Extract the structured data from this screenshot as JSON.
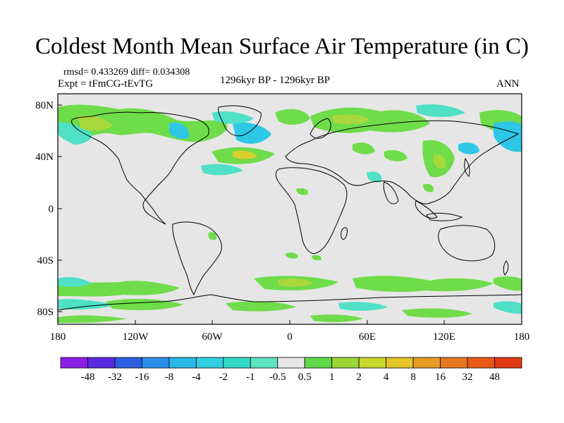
{
  "title": "Coldest Month Mean Surface Air Temperature (in C)",
  "stats": "rmsd= 0.433269  diff= 0.034308",
  "experiment": "Expt = tFmCG-tEvTG",
  "period": "1296kyr BP - 1296kyr BP",
  "season": "ANN",
  "lat_ticks": [
    "80N",
    "40N",
    "0",
    "40S",
    "80S"
  ],
  "lon_ticks": [
    "180",
    "120W",
    "60W",
    "0",
    "60E",
    "120E",
    "180"
  ],
  "legend": {
    "colors": [
      "#8c1fe6",
      "#5a2ae0",
      "#2f5fe0",
      "#2a8fe8",
      "#2bb6e8",
      "#33cfe0",
      "#35d9c8",
      "#5ee3c0",
      "#e6e6e6",
      "#5fd84a",
      "#9ad63a",
      "#c9d62e",
      "#e4c42a",
      "#e59c25",
      "#e8781f",
      "#e85a1a",
      "#e03a12"
    ],
    "labels": [
      "-48",
      "-32",
      "-16",
      "-8",
      "-4",
      "-2",
      "-1",
      "-0.5",
      "0.5",
      "1",
      "2",
      "4",
      "8",
      "16",
      "32",
      "48"
    ]
  },
  "palette": {
    "background": "#e6e6e6",
    "cyan": "#2ec8e6",
    "teal": "#4fe0c6",
    "green": "#6fdc4a",
    "lime": "#a9d83c",
    "yellow": "#d8cf2e"
  }
}
